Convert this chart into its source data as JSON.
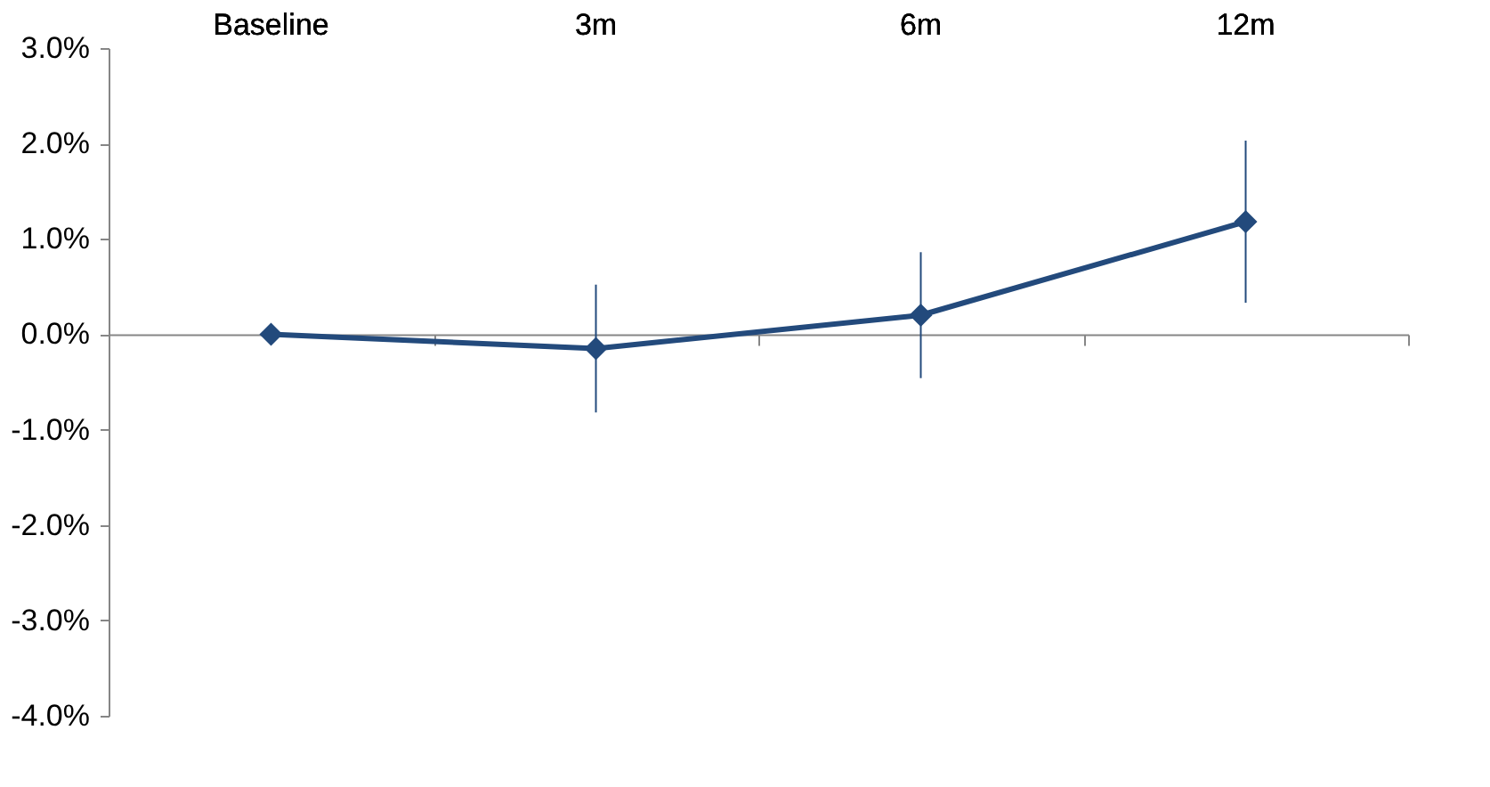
{
  "chart_data": {
    "type": "line",
    "categories": [
      "Baseline",
      "3m",
      "6m",
      "12m"
    ],
    "series": [
      {
        "color": "#234a7c",
        "values": [
          0,
          -0.15,
          0.2,
          1.18
        ],
        "errors": [
          null,
          0.67,
          0.66,
          0.85
        ]
      }
    ],
    "ylim": [
      -4,
      3
    ],
    "yticks": [
      {
        "value": 3,
        "label": "3.0%"
      },
      {
        "value": 2,
        "label": "2.0%"
      },
      {
        "value": 1,
        "label": "1.0%"
      },
      {
        "value": 0,
        "label": "0.0%"
      },
      {
        "value": -1,
        "label": "-1.0%"
      },
      {
        "value": -2,
        "label": "-2.0%"
      },
      {
        "value": -3,
        "label": "-3.0%"
      },
      {
        "value": -4,
        "label": "-4.0%"
      }
    ],
    "marker": "diamond",
    "line_style": "solid"
  }
}
